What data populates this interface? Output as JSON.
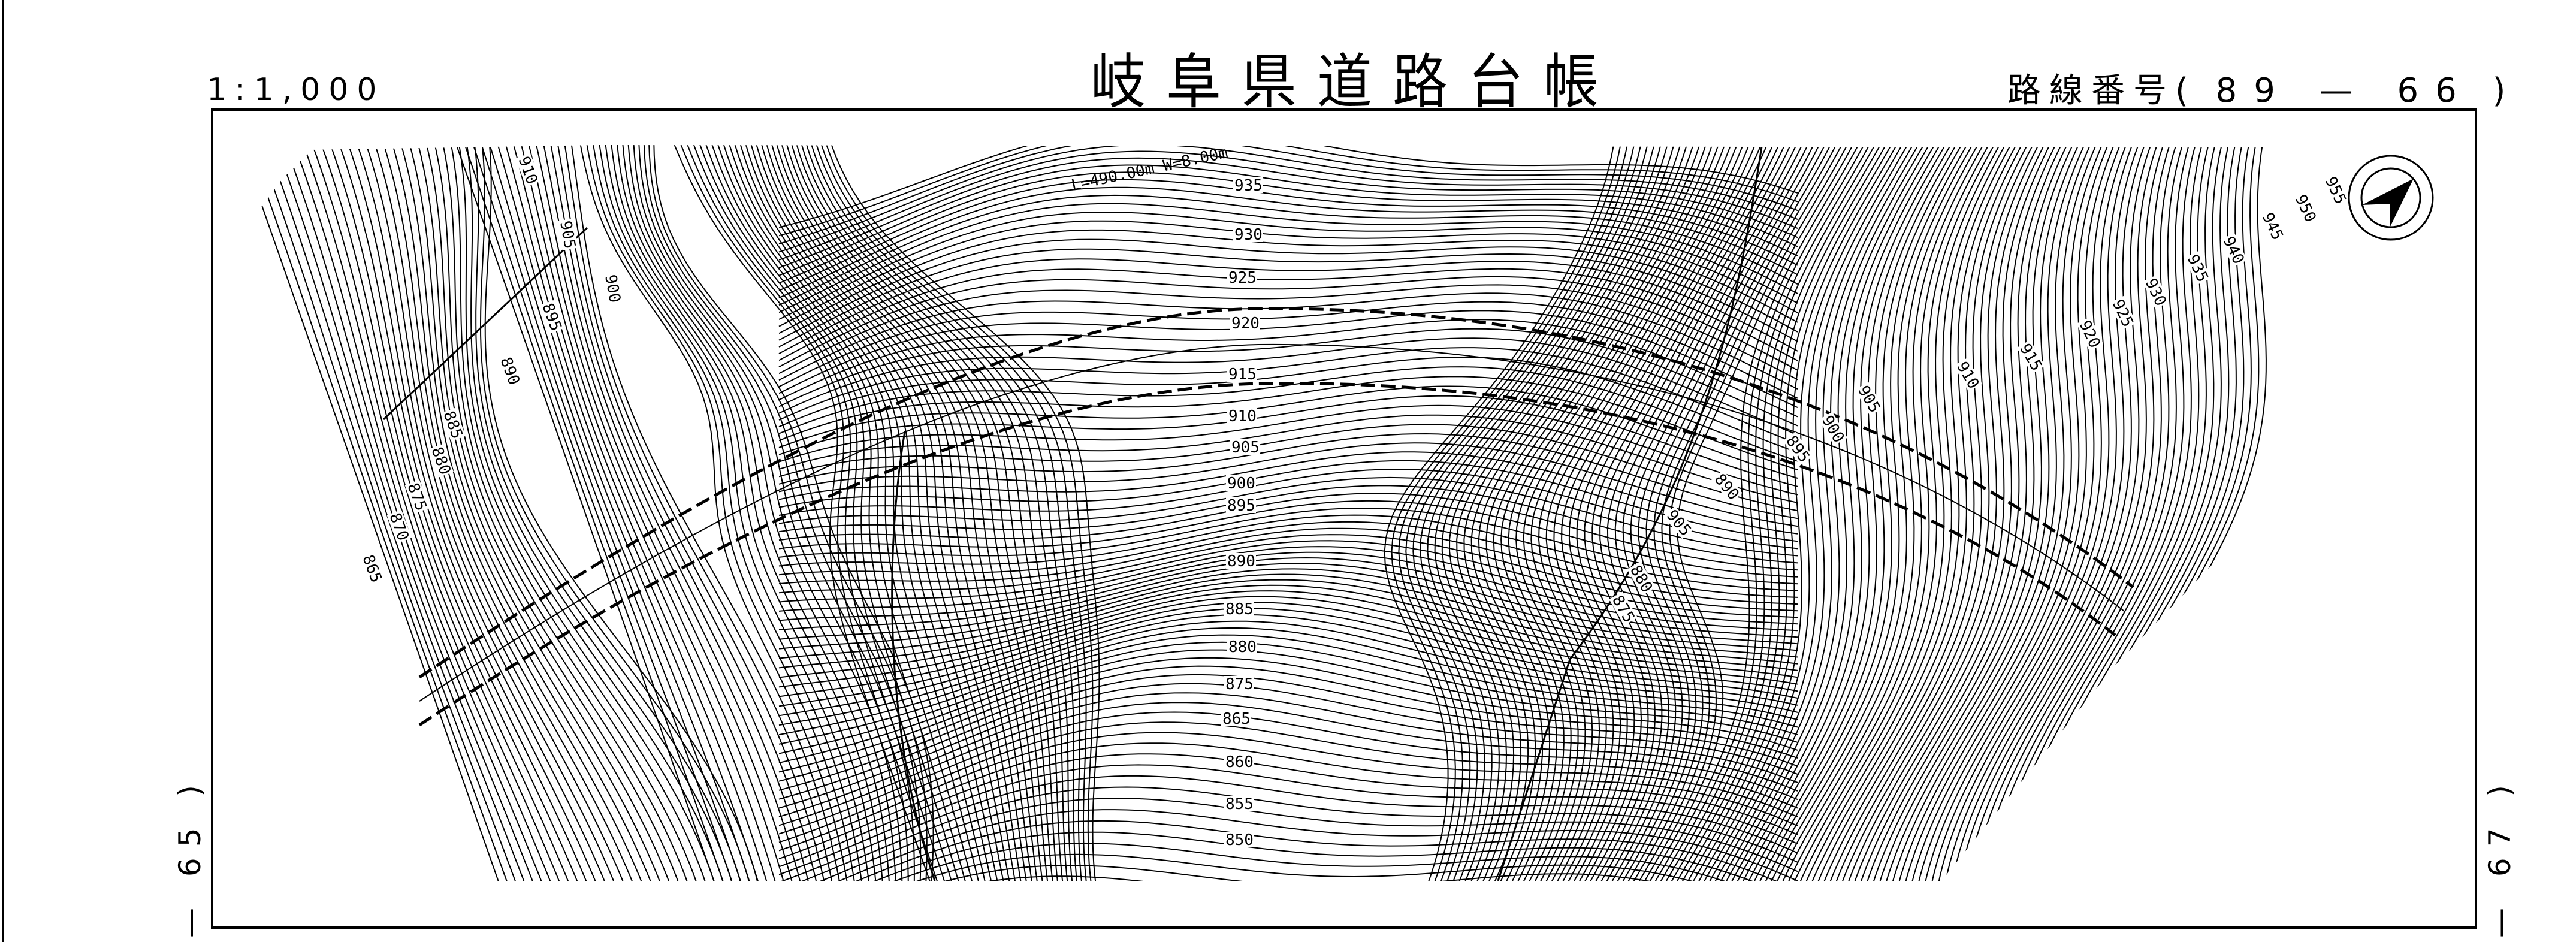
{
  "header": {
    "title": "岐阜県道路台帳",
    "scale": "1:1,000",
    "route_label": "路線番号(",
    "route_number": "89 — 66",
    "route_close": ")"
  },
  "adjacent_sheets": {
    "left": "— 65 )",
    "right": "— 67 )"
  },
  "map": {
    "road_annotation": "L=490.00m W=8.00m",
    "north_arrow": "compass-north-arrow-icon",
    "contour_labels_center": [
      "935",
      "930",
      "925",
      "920",
      "915",
      "910",
      "905",
      "900",
      "895",
      "890",
      "885",
      "880",
      "875",
      "865",
      "860",
      "855",
      "850"
    ],
    "contour_labels_left": [
      "910",
      "905",
      "900",
      "895",
      "890",
      "885",
      "880",
      "875",
      "870",
      "865"
    ],
    "contour_labels_right": [
      "955",
      "950",
      "945",
      "940",
      "935",
      "930",
      "925",
      "920",
      "915",
      "910",
      "905",
      "900",
      "895",
      "890",
      "905",
      "880",
      "875"
    ]
  }
}
